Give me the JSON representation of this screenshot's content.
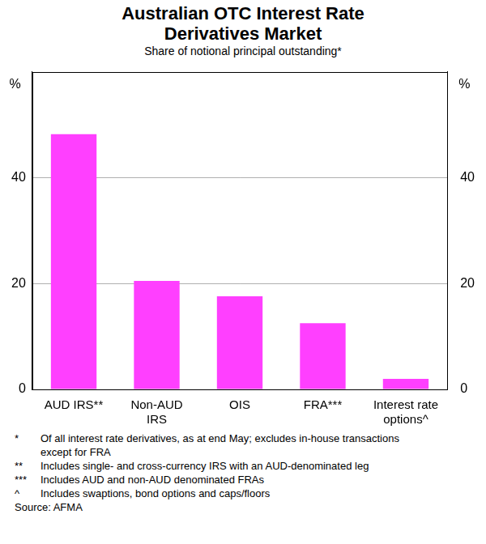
{
  "chart_data": {
    "type": "bar",
    "title": "Australian OTC Interest Rate Derivatives Market",
    "subtitle": "Share of notional principal outstanding*",
    "y_label": "%",
    "categories": [
      "AUD IRS**",
      [
        "Non-AUD",
        "IRS"
      ],
      "OIS",
      "FRA***",
      [
        "Interest rate",
        "options^"
      ]
    ],
    "values": [
      48.2,
      20.5,
      17.6,
      12.5,
      2.0
    ],
    "color": "#ff3fff",
    "ylim": [
      0,
      60
    ],
    "yticks": [
      0,
      20,
      40
    ],
    "y2lim": [
      0,
      60
    ],
    "y2ticks": [
      0,
      20,
      40
    ],
    "grid": true,
    "notes": [
      {
        "mark": "*",
        "text": "Of all interest rate derivatives, as at end May; excludes in-house transactions except for FRA"
      },
      {
        "mark": "**",
        "text": "Includes single- and cross-currency IRS with an AUD-denominated leg"
      },
      {
        "mark": "***",
        "text": "Includes AUD and non-AUD denominated FRAs"
      },
      {
        "mark": "^",
        "text": "Includes swaptions, bond options and caps/floors"
      }
    ],
    "source": "Source: AFMA"
  }
}
